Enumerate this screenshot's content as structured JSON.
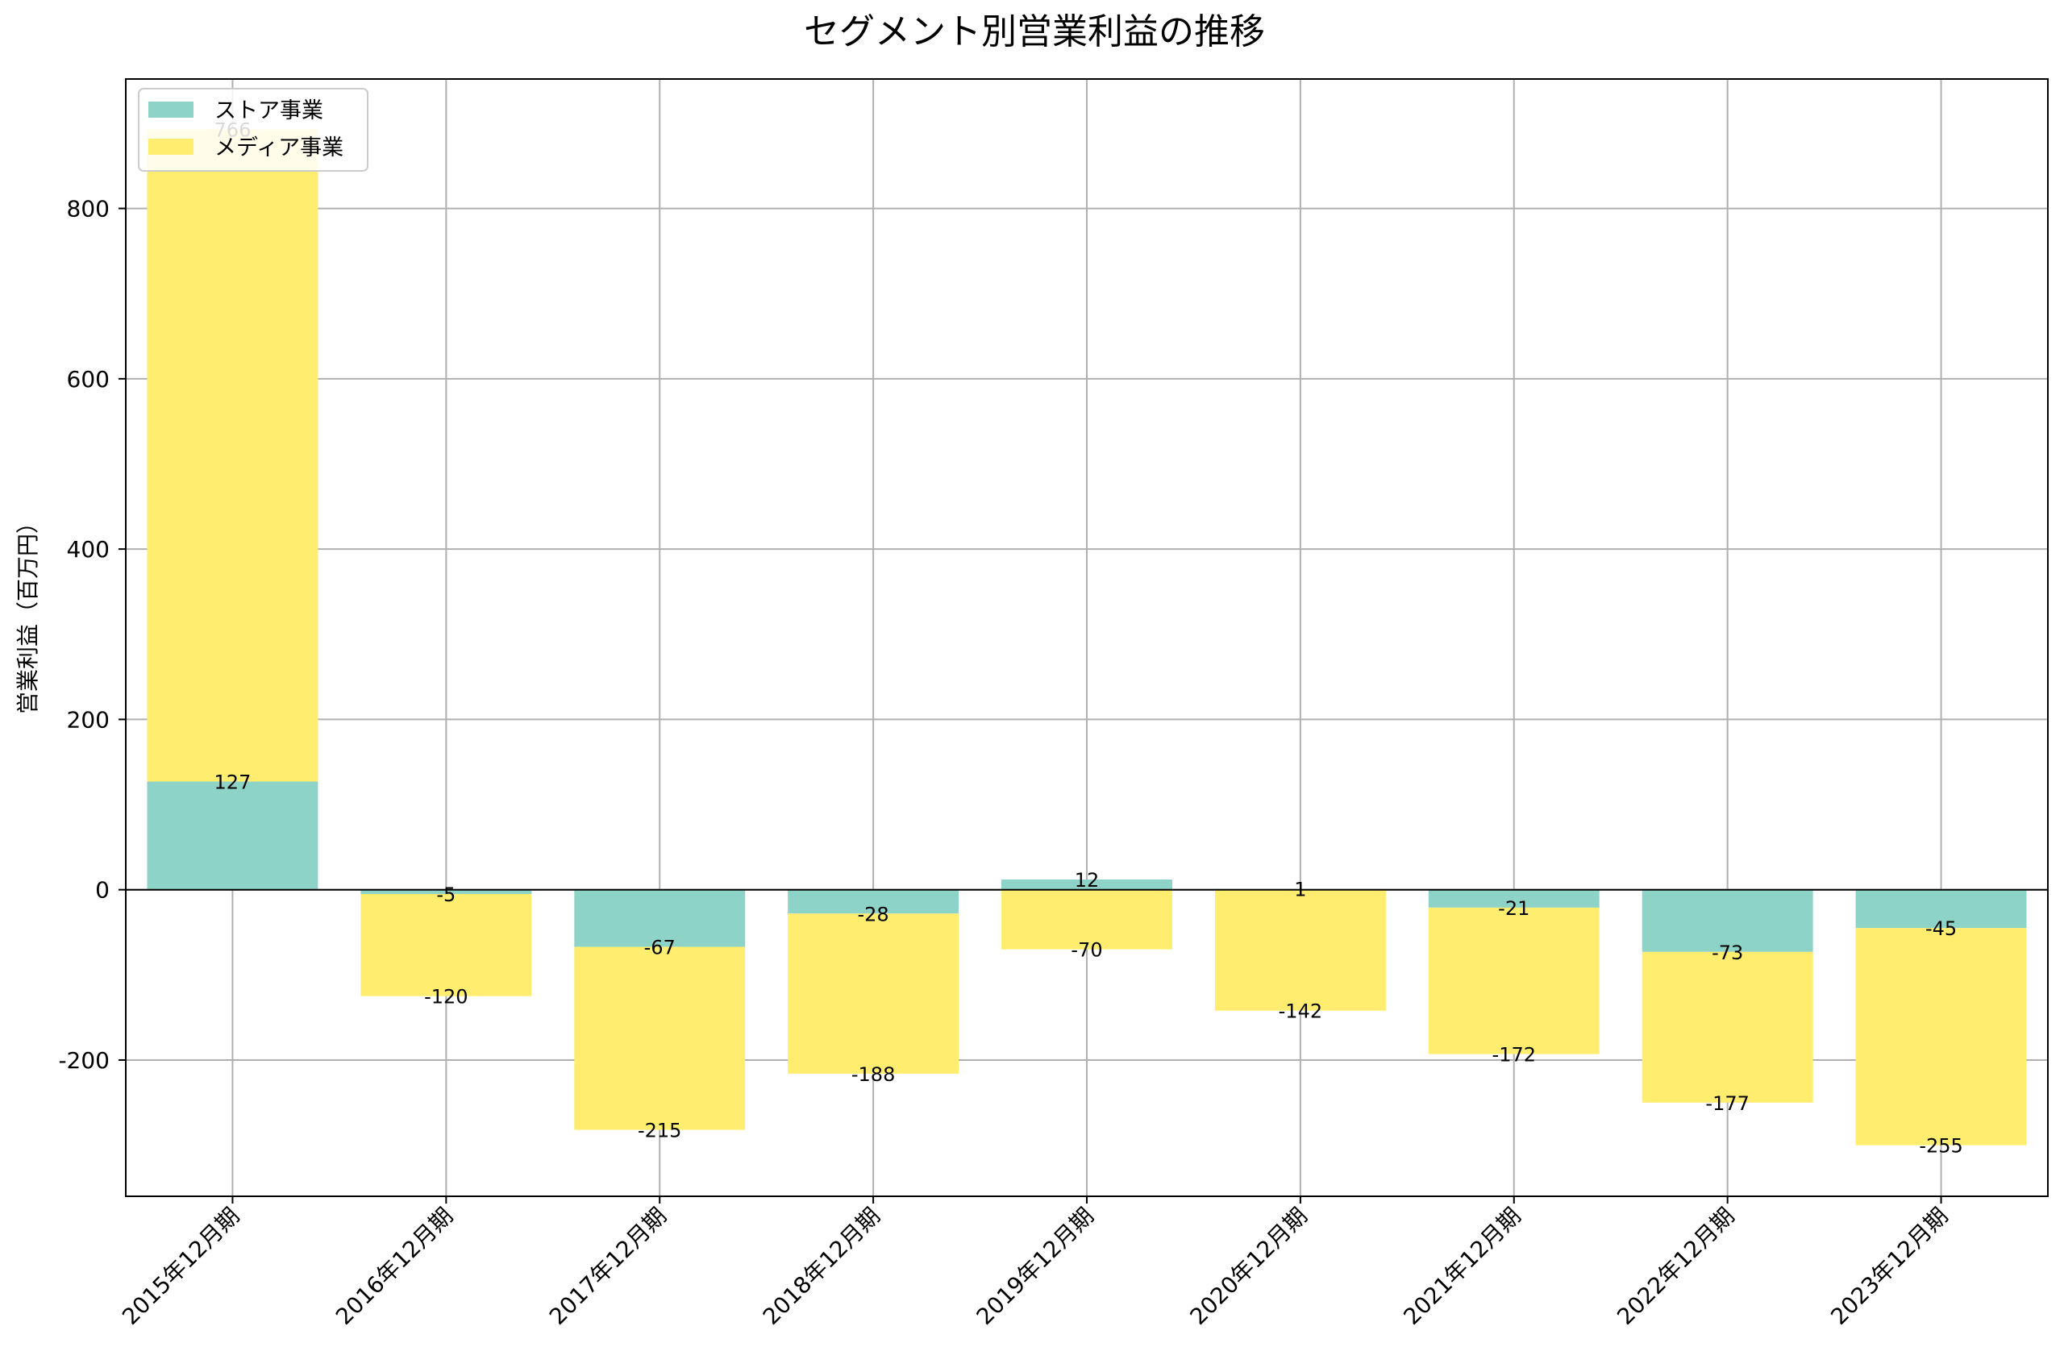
{
  "chart_data": {
    "type": "bar",
    "stacked": true,
    "title": "セグメント別営業利益の推移",
    "xlabel": "",
    "ylabel": "営業利益（百万円）",
    "ylim": [
      -360,
      952
    ],
    "yticks": [
      -200,
      0,
      200,
      400,
      600,
      800
    ],
    "grid": true,
    "legend_position": "top-left",
    "categories": [
      "2015年12月期",
      "2016年12月期",
      "2017年12月期",
      "2018年12月期",
      "2019年12月期",
      "2020年12月期",
      "2021年12月期",
      "2022年12月期",
      "2023年12月期"
    ],
    "series": [
      {
        "name": "ストア事業",
        "color": "#8dd3c7",
        "values": [
          127,
          -5,
          -67,
          -28,
          12,
          1,
          -21,
          -73,
          -45
        ]
      },
      {
        "name": "メディア事業",
        "color": "#ffed6f",
        "values": [
          766,
          -120,
          -215,
          -188,
          -70,
          -142,
          -172,
          -177,
          -255
        ]
      }
    ]
  }
}
